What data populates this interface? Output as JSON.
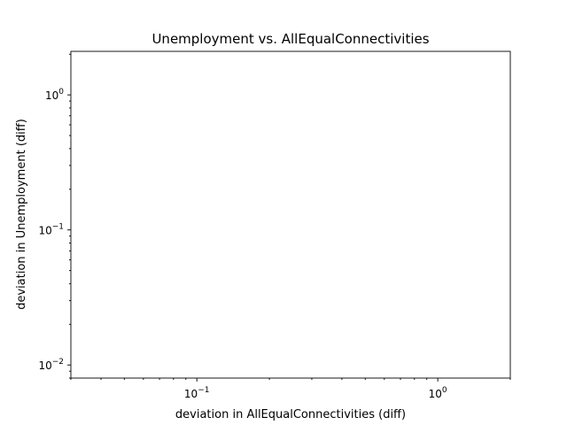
{
  "chart_data": {
    "type": "scatter",
    "title": "Unemployment vs. AllEqualConnectivities",
    "xlabel": "deviation in AllEqualConnectivities (diff)",
    "ylabel": "deviation in Unemployment (diff)",
    "xscale": "log",
    "yscale": "log",
    "xlim": [
      0.03,
      2
    ],
    "ylim": [
      0.008,
      2.1
    ],
    "x_major_ticks": [
      {
        "value": 0.1,
        "base": "10",
        "exp": "−1"
      },
      {
        "value": 1,
        "base": "10",
        "exp": "0"
      }
    ],
    "y_major_ticks": [
      {
        "value": 0.01,
        "base": "10",
        "exp": "−2"
      },
      {
        "value": 0.1,
        "base": "10",
        "exp": "−1"
      },
      {
        "value": 1,
        "base": "10",
        "exp": "0"
      }
    ],
    "grid": false,
    "legend": null,
    "series": [
      {
        "x": [],
        "y": []
      }
    ]
  }
}
